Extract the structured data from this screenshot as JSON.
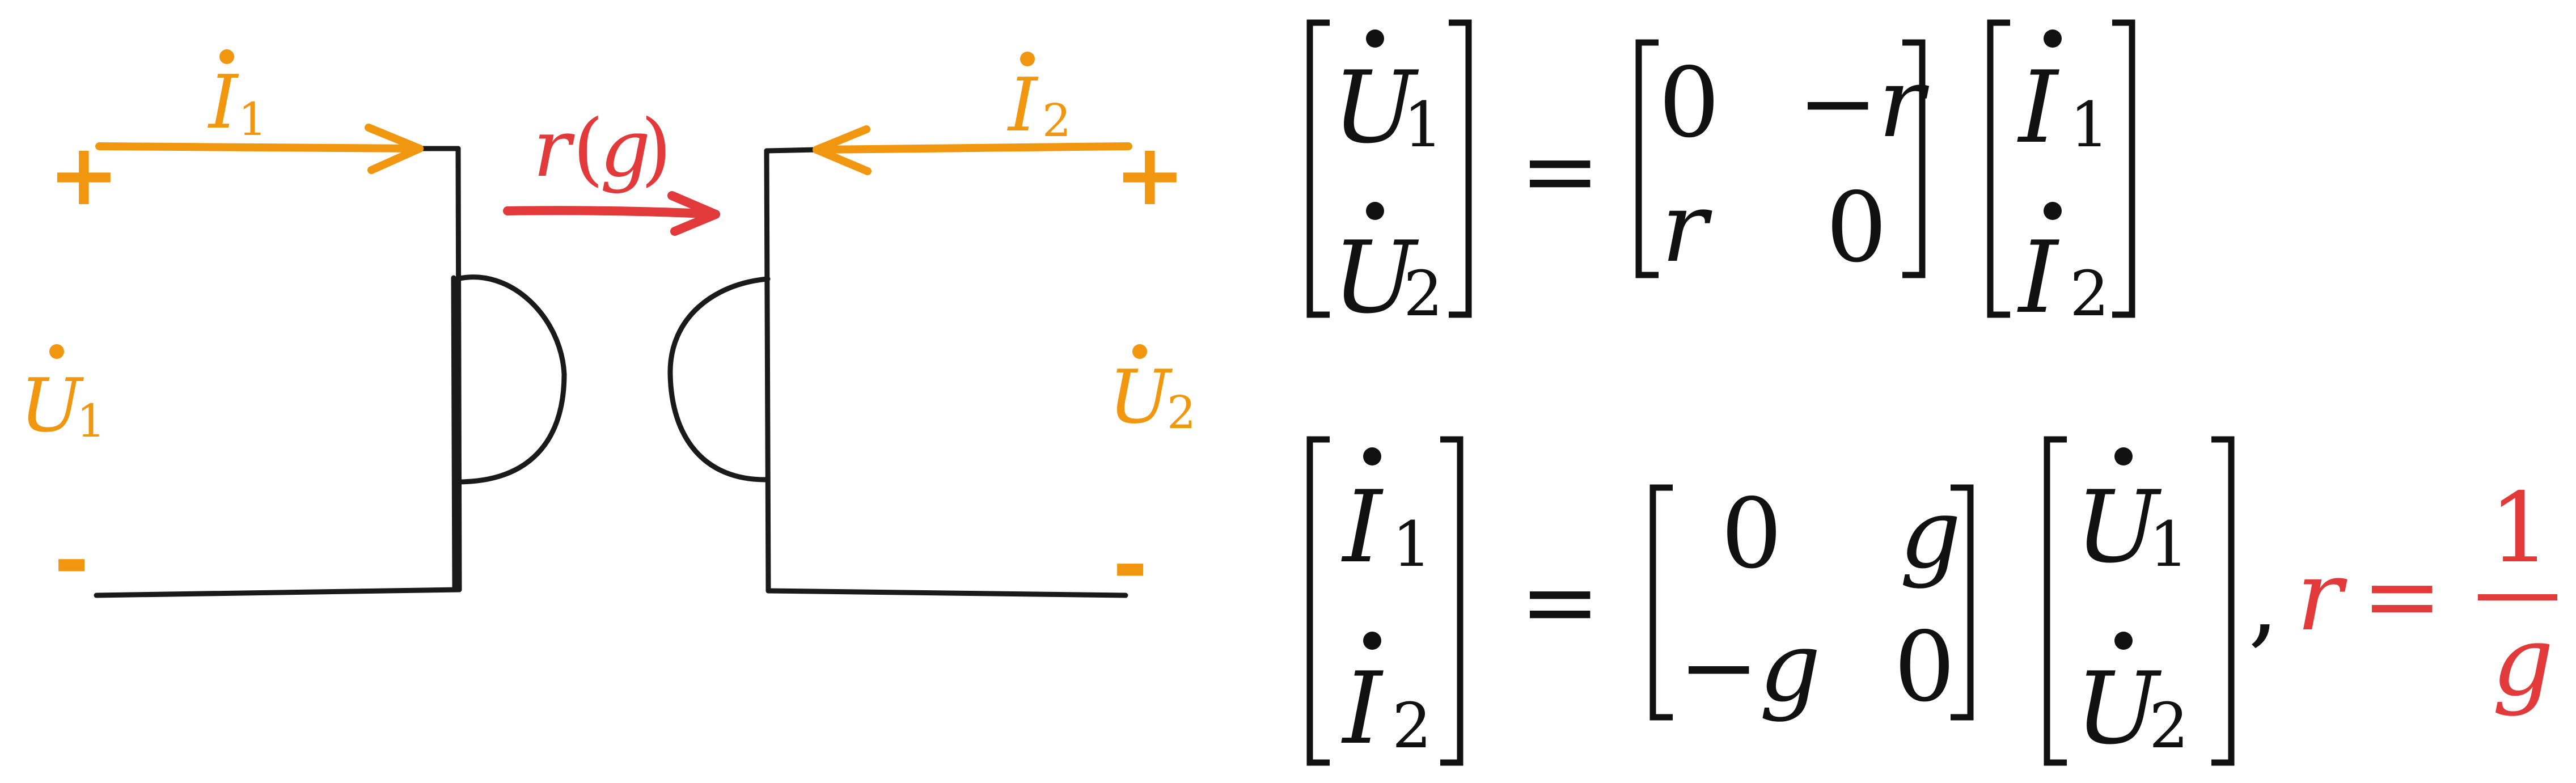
{
  "colors": {
    "ink": "#1a1a1a",
    "orange": "#f0960f",
    "red": "#e23a3a"
  },
  "circuit": {
    "plus": "+",
    "minus": "-",
    "transfer_symbol": "r",
    "transfer_paren_open": "(",
    "transfer_symbol_alt": "g",
    "transfer_paren_close": ")",
    "port1": {
      "current_symbol": "I",
      "current_sub": "1",
      "voltage_symbol": "U",
      "voltage_sub": "1"
    },
    "port2": {
      "current_symbol": "I",
      "current_sub": "2",
      "voltage_symbol": "U",
      "voltage_sub": "2"
    }
  },
  "eq1": {
    "lhs": [
      {
        "sym": "U",
        "sub": "1"
      },
      {
        "sym": "U",
        "sub": "2"
      }
    ],
    "equals": "=",
    "matrix": [
      [
        "0",
        "−r"
      ],
      [
        "r",
        "0"
      ]
    ],
    "rhs": [
      {
        "sym": "I",
        "sub": "1"
      },
      {
        "sym": "I",
        "sub": "2"
      }
    ]
  },
  "eq2": {
    "lhs": [
      {
        "sym": "I",
        "sub": "1"
      },
      {
        "sym": "I",
        "sub": "2"
      }
    ],
    "equals": "=",
    "matrix": [
      [
        "0",
        "g"
      ],
      [
        "−g",
        "0"
      ]
    ],
    "rhs": [
      {
        "sym": "U",
        "sub": "1"
      },
      {
        "sym": "U",
        "sub": "2"
      }
    ],
    "comma": ",",
    "relation": {
      "lhs": "r",
      "equals": "=",
      "numerator": "1",
      "denominator": "g"
    }
  }
}
